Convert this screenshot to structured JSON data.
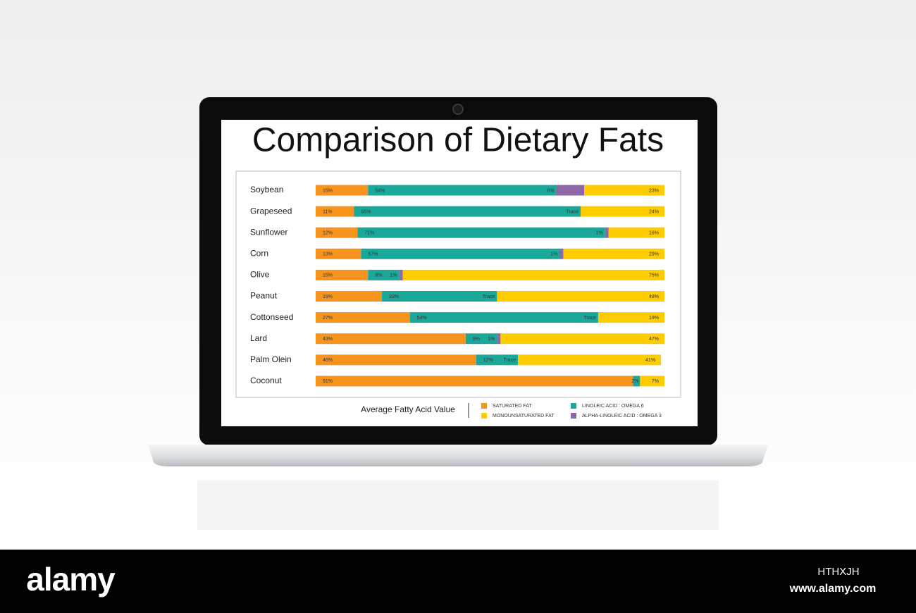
{
  "chart_data": {
    "type": "stacked-bar",
    "orientation": "horizontal",
    "title": "Comparison of Dietary Fats",
    "x_label": "Average Fatty Acid Value",
    "categories": [
      "Soybean",
      "Grapeseed",
      "Sunflower",
      "Corn",
      "Olive",
      "Peanut",
      "Cottonseed",
      "Lard",
      "Palm Olein",
      "Coconut"
    ],
    "xlim": [
      0,
      100
    ],
    "series": [
      {
        "name": "SATURATED FAT",
        "color": "#f7941d",
        "values": [
          15,
          11,
          12,
          13,
          15,
          19,
          27,
          43,
          46,
          91
        ],
        "value_labels": [
          "15%",
          "11%",
          "12%",
          "13%",
          "15%",
          "19%",
          "27%",
          "43%",
          "46%",
          "91%"
        ]
      },
      {
        "name": "LINOLEIC ACID : OMEGA 6",
        "color": "#1aa89a",
        "values": [
          54,
          65,
          71,
          57,
          9,
          33,
          54,
          9,
          12,
          2
        ],
        "value_labels": [
          "54%",
          "65%",
          "71%",
          "57%",
          "9%",
          "33%",
          "54%",
          "9%",
          "12%",
          "2%"
        ]
      },
      {
        "name": "ALPHA-LINOLEIC ACID : OMEGA 3",
        "color": "#8e67a8",
        "values": [
          8,
          0,
          1,
          1,
          1,
          0,
          0,
          1,
          0,
          null
        ],
        "value_labels": [
          "8%",
          "Trace",
          "1%",
          "1%",
          "1%",
          "Trace",
          "Trace",
          "1%",
          "Trace",
          null
        ]
      },
      {
        "name": "MONOUNSATURATED FAT",
        "color": "#ffcc00",
        "values": [
          23,
          24,
          16,
          29,
          75,
          48,
          19,
          47,
          41,
          7
        ],
        "value_labels": [
          "23%",
          "24%",
          "16%",
          "29%",
          "75%",
          "48%",
          "19%",
          "47%",
          "41%",
          "7%"
        ]
      }
    ],
    "legend_order": [
      0,
      3,
      1,
      2
    ]
  },
  "stock_banner": {
    "brand": "alamy",
    "image_id": "HTHXJH",
    "url": "www.alamy.com"
  }
}
